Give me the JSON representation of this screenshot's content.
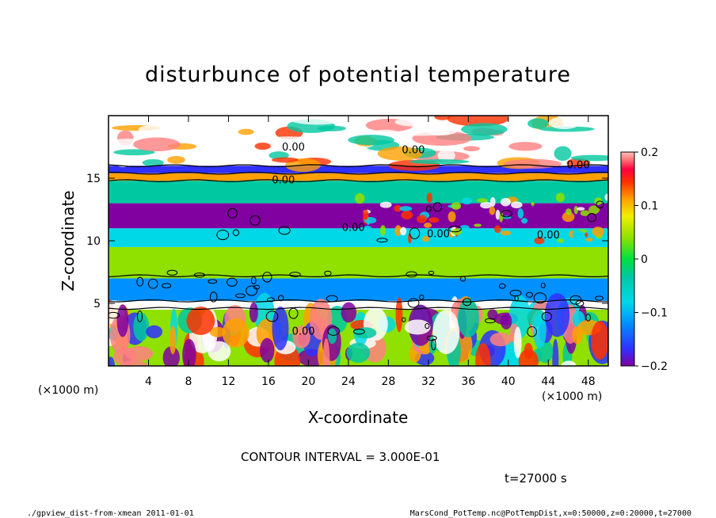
{
  "chart_data": {
    "type": "heatmap",
    "title": "disturbunce of potential temperature",
    "xlabel": "X-coordinate",
    "ylabel": "Z-coordinate",
    "x_unit_label": "(×1000 m)",
    "z_unit_label": "(×1000 m)",
    "xlim": [
      0,
      50
    ],
    "ylim": [
      0,
      20
    ],
    "x_ticks": [
      4,
      8,
      12,
      16,
      20,
      24,
      28,
      32,
      36,
      40,
      44,
      48
    ],
    "y_ticks": [
      5,
      10,
      15
    ],
    "colorbar": {
      "range": [
        -0.2,
        0.2
      ],
      "ticks": [
        "0.2",
        "0.1",
        "0",
        "−0.1",
        "−0.2"
      ],
      "tick_values": [
        0.2,
        0.1,
        0,
        -0.1,
        -0.2
      ],
      "colors": [
        "#8000a0",
        "#3030ff",
        "#0090ff",
        "#00d8e8",
        "#00c8a0",
        "#00e040",
        "#90e000",
        "#f0f000",
        "#ffa000",
        "#ff3000",
        "#ff0040",
        "#ff8080",
        "#ffc0c0"
      ]
    },
    "contour_labels": [
      "0.00",
      "0.00",
      "0.00",
      "0.00",
      "0.00",
      "0.00",
      "0.00",
      "0.00"
    ],
    "layers": [
      {
        "z_range": [
          0,
          4.5
        ],
        "description_value": "mixed",
        "value": 0.0
      },
      {
        "z_range": [
          4.5,
          5.2
        ],
        "value": 0.2
      },
      {
        "z_range": [
          5.2,
          7.0
        ],
        "value": -0.12
      },
      {
        "z_range": [
          7.0,
          9.5
        ],
        "value": 0.0
      },
      {
        "z_range": [
          9.5,
          11.0
        ],
        "value": -0.08
      },
      {
        "z_range": [
          11.0,
          13.0
        ],
        "value": -0.18
      },
      {
        "z_range": [
          13.0,
          14.8
        ],
        "value": -0.05
      },
      {
        "z_range": [
          14.8,
          15.4
        ],
        "value": 0.05
      },
      {
        "z_range": [
          15.4,
          16.0
        ],
        "value": -0.15
      },
      {
        "z_range": [
          16.0,
          20.0
        ],
        "value": 0.2
      }
    ]
  },
  "contour_interval": "CONTOUR INTERVAL = 3.000E-01",
  "time_label": "t=27000 s",
  "footer_left": "./gpview_dist-from-xmean   2011-01-01",
  "footer_right": "MarsCond_PotTemp.nc@PotTempDist,x=0:50000,z=0:20000,t=27000"
}
